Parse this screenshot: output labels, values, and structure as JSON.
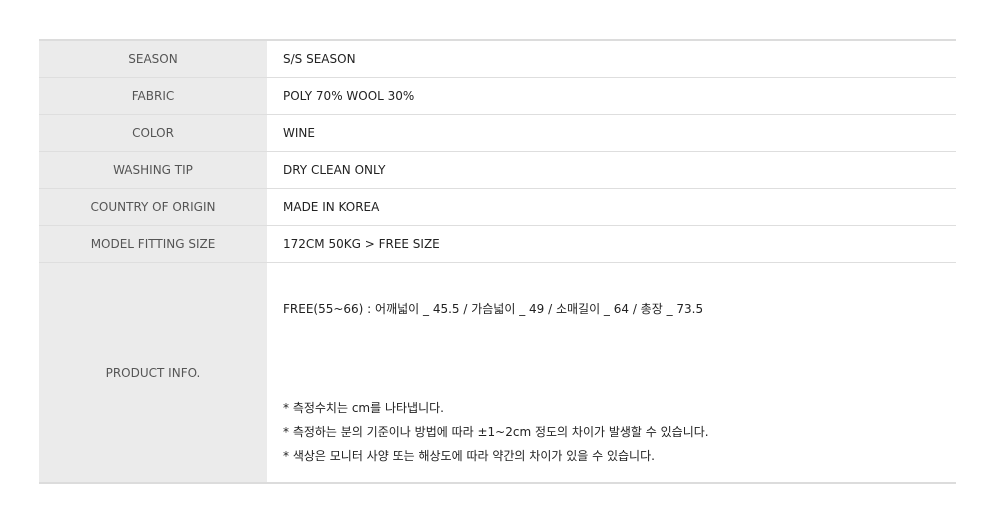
{
  "rows": [
    {
      "label": "SEASON",
      "value": "S/S SEASON"
    },
    {
      "label": "FABRIC",
      "value": "POLY 70% WOOL 30%"
    },
    {
      "label": "COLOR",
      "value": "WINE"
    },
    {
      "label": "WASHING TIP",
      "value": "DRY CLEAN ONLY"
    },
    {
      "label": "COUNTRY OF ORIGIN",
      "value": "MADE IN KOREA"
    },
    {
      "label": "MODEL FITTING SIZE",
      "value": "172CM 50KG > FREE SIZE"
    }
  ],
  "product_info": {
    "label": "PRODUCT INFO.",
    "size": "FREE(55~66) : 어깨넓이 _ 45.5 / 가슴넓이 _ 49 / 소매길이 _ 64 / 총장 _ 73.5",
    "notes": [
      "* 측정수치는 cm를 나타냅니다.",
      "* 측정하는 분의 기준이나 방법에 따라 ±1~2cm 정도의 차이가 발생할 수 있습니다.",
      "* 색상은 모니터 사양 또는 해상도에 따라 약간의 차이가 있을 수 있습니다."
    ]
  }
}
